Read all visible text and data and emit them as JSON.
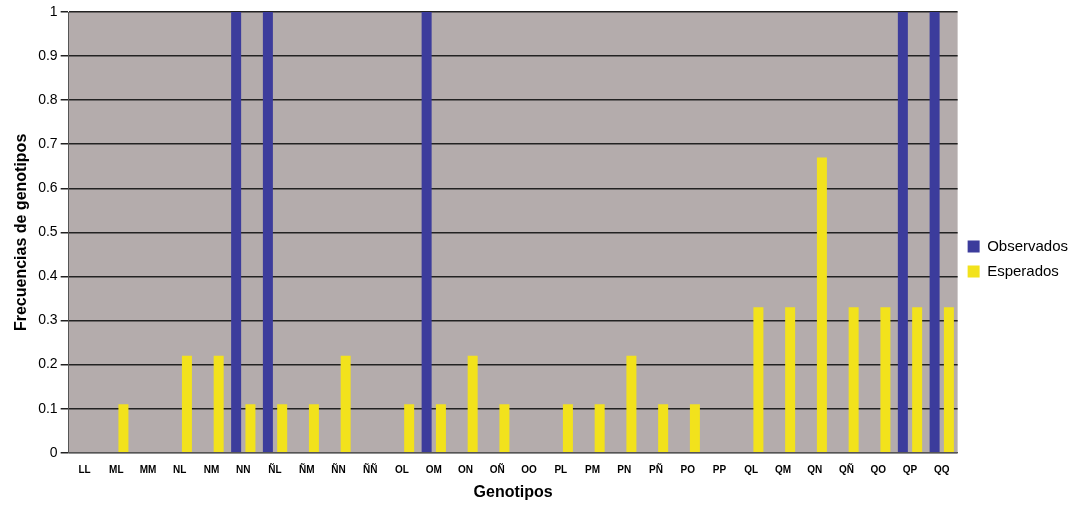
{
  "chart_data": {
    "type": "bar",
    "xlabel": "Genotipos",
    "ylabel": "Frecuencias de genotipos",
    "categories": [
      "LL",
      "ML",
      "MM",
      "NL",
      "NM",
      "NN",
      "ÑL",
      "ÑM",
      "ÑN",
      "ÑÑ",
      "OL",
      "OM",
      "ON",
      "OÑ",
      "OO",
      "PL",
      "PM",
      "PN",
      "PÑ",
      "PO",
      "PP",
      "QL",
      "QM",
      "QN",
      "QÑ",
      "QO",
      "QP",
      "QQ"
    ],
    "series": [
      {
        "name": "Observados",
        "color": "#3c3c9c",
        "values": [
          0,
          0,
          0,
          0,
          0,
          1,
          1,
          0,
          0,
          0,
          0,
          1,
          0,
          0,
          0,
          0,
          0,
          0,
          0,
          0,
          0,
          0,
          0,
          0,
          0,
          0,
          1,
          1
        ]
      },
      {
        "name": "Esperados",
        "color": "#f2e21c",
        "values": [
          0,
          0.11,
          0,
          0.22,
          0.22,
          0.11,
          0.11,
          0.11,
          0.22,
          0,
          0.11,
          0.11,
          0.22,
          0.11,
          0,
          0.11,
          0.11,
          0.22,
          0.11,
          0.11,
          0,
          0.33,
          0.33,
          0.67,
          0.33,
          0.33,
          0.33,
          0.33
        ]
      }
    ],
    "ylim": [
      0,
      1
    ],
    "yticks": [
      0,
      0.1,
      0.2,
      0.3,
      0.4,
      0.5,
      0.6,
      0.7,
      0.8,
      0.9,
      1
    ],
    "grid": "y",
    "legend": "right"
  }
}
